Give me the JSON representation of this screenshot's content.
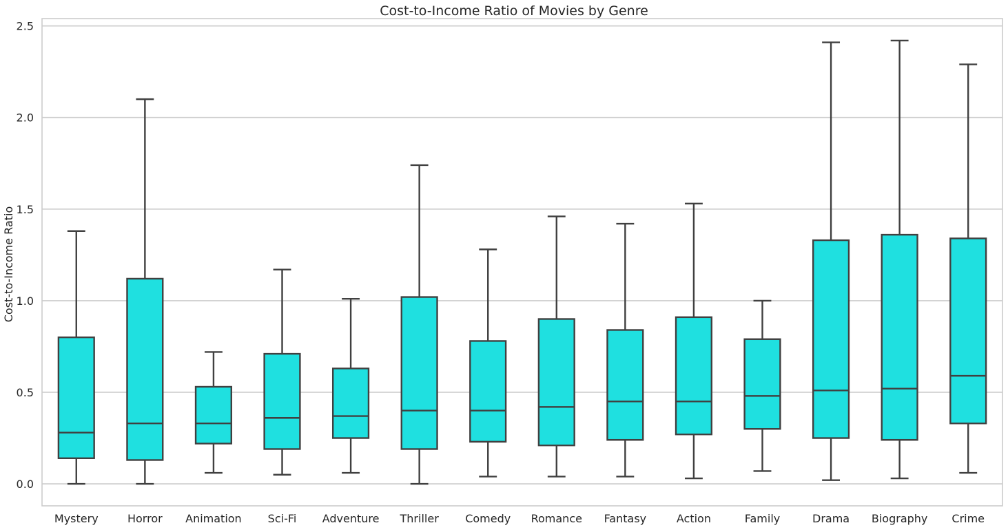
{
  "colors": {
    "box_fill": "#1fe0e0",
    "box_edge": "#404040",
    "grid": "#cccccc",
    "axes_edge": "#cccccc",
    "text": "#262626",
    "background": "#ffffff"
  },
  "chart_data": {
    "type": "box",
    "title": "Cost-to-Income Ratio of Movies by Genre",
    "xlabel": "",
    "ylabel": "Cost-to-Income Ratio",
    "ylim": [
      -0.12,
      2.54
    ],
    "y_ticks": [
      0.0,
      0.5,
      1.0,
      1.5,
      2.0,
      2.5
    ],
    "y_tick_labels": [
      "0.0",
      "0.5",
      "1.0",
      "1.5",
      "2.0",
      "2.5"
    ],
    "grid": "horizontal",
    "categories": [
      "Mystery",
      "Horror",
      "Animation",
      "Sci-Fi",
      "Adventure",
      "Thriller",
      "Comedy",
      "Romance",
      "Fantasy",
      "Action",
      "Family",
      "Drama",
      "Biography",
      "Crime"
    ],
    "boxes": [
      {
        "category": "Mystery",
        "whisker_low": 0.0,
        "q1": 0.14,
        "median": 0.28,
        "q3": 0.8,
        "whisker_high": 1.38
      },
      {
        "category": "Horror",
        "whisker_low": 0.0,
        "q1": 0.13,
        "median": 0.33,
        "q3": 1.12,
        "whisker_high": 2.1
      },
      {
        "category": "Animation",
        "whisker_low": 0.06,
        "q1": 0.22,
        "median": 0.33,
        "q3": 0.53,
        "whisker_high": 0.72
      },
      {
        "category": "Sci-Fi",
        "whisker_low": 0.05,
        "q1": 0.19,
        "median": 0.36,
        "q3": 0.71,
        "whisker_high": 1.17
      },
      {
        "category": "Adventure",
        "whisker_low": 0.06,
        "q1": 0.25,
        "median": 0.37,
        "q3": 0.63,
        "whisker_high": 1.01
      },
      {
        "category": "Thriller",
        "whisker_low": 0.0,
        "q1": 0.19,
        "median": 0.4,
        "q3": 1.02,
        "whisker_high": 1.74
      },
      {
        "category": "Comedy",
        "whisker_low": 0.04,
        "q1": 0.23,
        "median": 0.4,
        "q3": 0.78,
        "whisker_high": 1.28
      },
      {
        "category": "Romance",
        "whisker_low": 0.04,
        "q1": 0.21,
        "median": 0.42,
        "q3": 0.9,
        "whisker_high": 1.46
      },
      {
        "category": "Fantasy",
        "whisker_low": 0.04,
        "q1": 0.24,
        "median": 0.45,
        "q3": 0.84,
        "whisker_high": 1.42
      },
      {
        "category": "Action",
        "whisker_low": 0.03,
        "q1": 0.27,
        "median": 0.45,
        "q3": 0.91,
        "whisker_high": 1.53
      },
      {
        "category": "Family",
        "whisker_low": 0.07,
        "q1": 0.3,
        "median": 0.48,
        "q3": 0.79,
        "whisker_high": 1.0
      },
      {
        "category": "Drama",
        "whisker_low": 0.02,
        "q1": 0.25,
        "median": 0.51,
        "q3": 1.33,
        "whisker_high": 2.41
      },
      {
        "category": "Biography",
        "whisker_low": 0.03,
        "q1": 0.24,
        "median": 0.52,
        "q3": 1.36,
        "whisker_high": 2.42
      },
      {
        "category": "Crime",
        "whisker_low": 0.06,
        "q1": 0.33,
        "median": 0.59,
        "q3": 1.34,
        "whisker_high": 2.29
      }
    ]
  }
}
